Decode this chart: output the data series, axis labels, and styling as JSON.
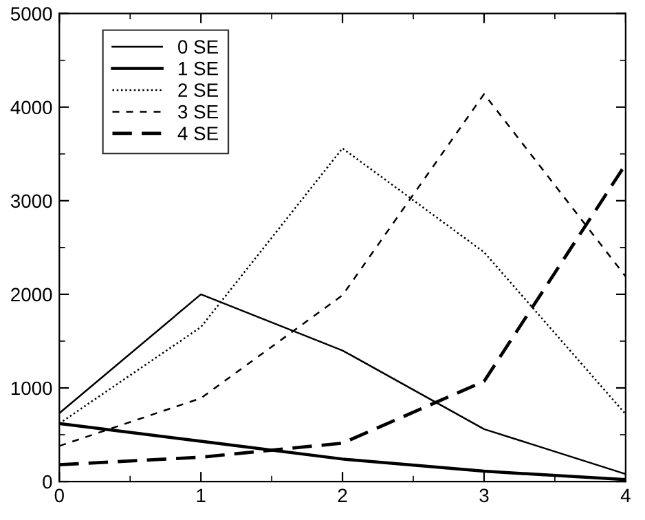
{
  "chart_data": {
    "type": "line",
    "x": [
      0,
      1,
      2,
      3,
      4
    ],
    "series": [
      {
        "name": "0 SE",
        "color": "#000000",
        "line_style": "solid",
        "values": [
          730,
          2000,
          1400,
          560,
          80
        ]
      },
      {
        "name": "1 SE",
        "color": "#000000",
        "line_style": "solid",
        "values": [
          620,
          430,
          240,
          110,
          20
        ]
      },
      {
        "name": "2 SE",
        "color": "#000000",
        "line_style": "dotted",
        "values": [
          620,
          1650,
          3560,
          2450,
          720
        ]
      },
      {
        "name": "3 SE",
        "color": "#000000",
        "line_style": "dashed",
        "values": [
          380,
          890,
          1990,
          4140,
          2190
        ]
      },
      {
        "name": "4 SE",
        "color": "#000000",
        "line_style": "dashed",
        "values": [
          180,
          260,
          410,
          1070,
          3390
        ]
      }
    ],
    "xlim": [
      0,
      4
    ],
    "xticks": [
      0,
      1,
      2,
      3,
      4
    ],
    "ylim": [
      0,
      5000
    ],
    "yticks": [
      0,
      1000,
      2000,
      3000,
      4000,
      5000
    ],
    "grid": false,
    "legend": "top left",
    "marker": "none"
  }
}
